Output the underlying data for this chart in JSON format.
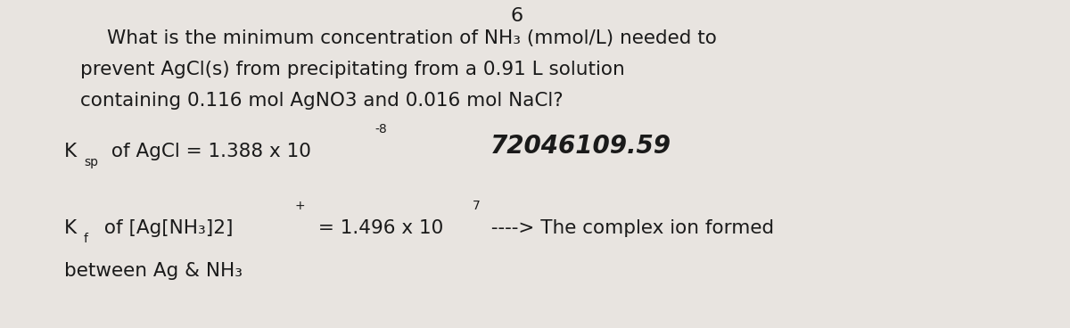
{
  "background_color": "#e8e4e0",
  "title_number": "6",
  "line1": "What is the minimum concentration of NH₃ (mmol/L) needed to",
  "line2": "prevent AgCl(s) from precipitating from a 0.91 L solution",
  "line3": "containing 0.116 mol AgNO3 and 0.016 mol NaCl?",
  "ksp_line": "K",
  "ksp_sub": "sp",
  "ksp_rest": " of AgCl = 1.388 x 10",
  "ksp_exp": "-8",
  "handwritten": "72046109.59",
  "kf_line": "K",
  "kf_sub": "f",
  "kf_rest": " of [Ag[NH₃]2]",
  "kf_sup": "+",
  "kf_eq": " = 1.496 x 10",
  "kf_exp": "7",
  "arrow_text": " ----> The complex ion formed",
  "bottom_text": "between Ag & NH₃",
  "text_color": "#1a1a1a",
  "fs_main": 15.5,
  "fs_sub": 10,
  "fs_hand": 20,
  "fs_title": 16
}
